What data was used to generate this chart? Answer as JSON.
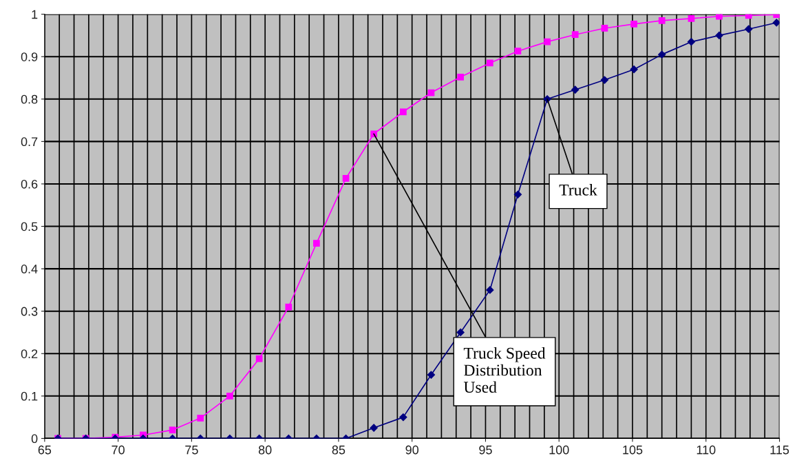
{
  "chart_data": {
    "type": "line",
    "x": [
      65.9,
      67.8,
      69.8,
      71.7,
      73.7,
      75.6,
      77.6,
      79.6,
      81.6,
      83.5,
      85.5,
      87.4,
      89.4,
      91.3,
      93.3,
      95.3,
      97.2,
      99.2,
      101.1,
      103.1,
      105.1,
      107.0,
      109.0,
      110.9,
      112.9,
      114.8
    ],
    "series": [
      {
        "color": "#ff00ff",
        "marker": "square",
        "values": [
          0,
          0,
          0.003,
          0.008,
          0.02,
          0.048,
          0.1,
          0.188,
          0.31,
          0.46,
          0.613,
          0.718,
          0.77,
          0.815,
          0.852,
          0.885,
          0.913,
          0.935,
          0.952,
          0.967,
          0.977,
          0.985,
          0.99,
          0.995,
          0.997,
          0.999
        ]
      },
      {
        "color": "#000080",
        "marker": "diamond",
        "values": [
          0,
          0,
          0,
          0,
          0,
          0,
          0,
          0,
          0,
          0,
          0,
          0.025,
          0.05,
          0.15,
          0.25,
          0.35,
          0.575,
          0.8,
          0.822,
          0.845,
          0.87,
          0.905,
          0.935,
          0.95,
          0.965,
          0.98
        ]
      }
    ],
    "xlim": [
      65,
      115
    ],
    "xticks": [
      65,
      70,
      75,
      80,
      85,
      90,
      95,
      100,
      105,
      110,
      115
    ],
    "ylim": [
      0,
      1
    ],
    "yticks": [
      0,
      {
        "value": 0.1,
        "label": "0.1"
      },
      {
        "value": 0.2,
        "label": "0.2"
      },
      {
        "value": 0.3,
        "label": "0.3"
      },
      {
        "value": 0.4,
        "label": "0.4"
      },
      {
        "value": 0.5,
        "label": "0.5"
      },
      {
        "value": 0.6,
        "label": "0.6"
      },
      {
        "value": 0.7,
        "label": "0.7"
      },
      {
        "value": 0.8,
        "label": "0.8"
      },
      {
        "value": 0.9,
        "label": "0.9"
      },
      1
    ],
    "grid": true,
    "legend": false,
    "annotations": [
      {
        "text": "Truck",
        "x": 99.2,
        "y": 0.8
      },
      {
        "text": "Truck Speed\nDistribution\nUsed",
        "x": 87.4,
        "y": 0.718
      }
    ]
  }
}
